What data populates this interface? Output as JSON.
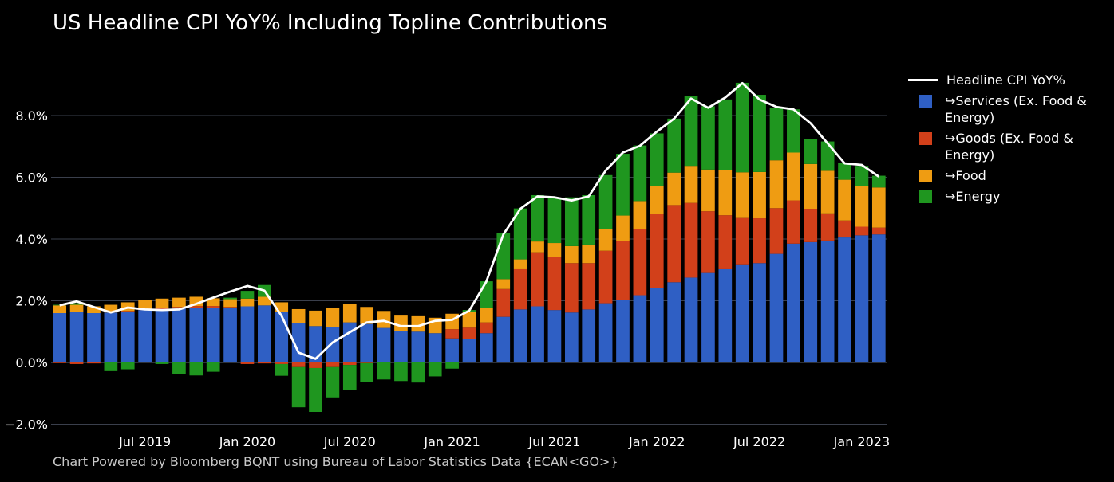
{
  "title": "US Headline CPI YoY% Including Topline Contributions",
  "footer": "Chart Powered by Bloomberg BQNT using Bureau of Labor Statistics Data    {ECAN<GO>}",
  "colors": {
    "services": "#2f5fc4",
    "goods": "#d2401a",
    "food": "#ef9c12",
    "energy": "#1f961f",
    "headline": "#ffffff",
    "grid": "#3a3f4c",
    "axis_text": "#ffffff"
  },
  "legend": [
    {
      "label": "Headline CPI YoY%",
      "kind": "line",
      "color_key": "headline"
    },
    {
      "label": "↪Services (Ex. Food & Energy)",
      "kind": "box",
      "color_key": "services"
    },
    {
      "label": "↪Goods (Ex. Food & Energy)",
      "kind": "box",
      "color_key": "goods"
    },
    {
      "label": "↪Food",
      "kind": "box",
      "color_key": "food"
    },
    {
      "label": "↪Energy",
      "kind": "box",
      "color_key": "energy"
    }
  ],
  "chart_data": {
    "type": "bar",
    "stacked": true,
    "title": "US Headline CPI YoY% Including Topline Contributions",
    "ylim": [
      -2.0,
      9.5
    ],
    "yticks": [
      -2.0,
      0.0,
      2.0,
      4.0,
      6.0,
      8.0
    ],
    "ytick_labels": [
      "−2.0%",
      "0.0%",
      "2.0%",
      "4.0%",
      "6.0%",
      "8.0%"
    ],
    "xtick_labels": [
      {
        "label": "Jul 2019",
        "month": "2019-07"
      },
      {
        "label": "Jan 2020",
        "month": "2020-01"
      },
      {
        "label": "Jul 2020",
        "month": "2020-07"
      },
      {
        "label": "Jan 2021",
        "month": "2021-01"
      },
      {
        "label": "Jul 2021",
        "month": "2021-07"
      },
      {
        "label": "Jan 2022",
        "month": "2022-01"
      },
      {
        "label": "Jul 2022",
        "month": "2022-07"
      },
      {
        "label": "Jan 2023",
        "month": "2023-01"
      }
    ],
    "grid": true,
    "legend_position": "right",
    "months": [
      "2019-02",
      "2019-03",
      "2019-04",
      "2019-05",
      "2019-06",
      "2019-07",
      "2019-08",
      "2019-09",
      "2019-10",
      "2019-11",
      "2019-12",
      "2020-01",
      "2020-02",
      "2020-03",
      "2020-04",
      "2020-05",
      "2020-06",
      "2020-07",
      "2020-08",
      "2020-09",
      "2020-10",
      "2020-11",
      "2020-12",
      "2021-01",
      "2021-02",
      "2021-03",
      "2021-04",
      "2021-05",
      "2021-06",
      "2021-07",
      "2021-08",
      "2021-09",
      "2021-10",
      "2021-11",
      "2021-12",
      "2022-01",
      "2022-02",
      "2022-03",
      "2022-04",
      "2022-05",
      "2022-06",
      "2022-07",
      "2022-08",
      "2022-09",
      "2022-10",
      "2022-11",
      "2022-12",
      "2023-01",
      "2023-02"
    ],
    "series": [
      {
        "name": "↪Services (Ex. Food & Energy)",
        "color_key": "services",
        "values": [
          1.6,
          1.65,
          1.6,
          1.62,
          1.65,
          1.7,
          1.72,
          1.75,
          1.78,
          1.78,
          1.78,
          1.82,
          1.85,
          1.65,
          1.28,
          1.18,
          1.15,
          1.3,
          1.25,
          1.12,
          1.02,
          1.0,
          0.95,
          0.78,
          0.75,
          0.95,
          1.48,
          1.72,
          1.82,
          1.7,
          1.62,
          1.72,
          1.92,
          2.02,
          2.18,
          2.42,
          2.6,
          2.75,
          2.9,
          3.02,
          3.18,
          3.22,
          3.52,
          3.85,
          3.9,
          3.95,
          4.05,
          4.12,
          4.15
        ]
      },
      {
        "name": "↪Goods (Ex. Food & Energy)",
        "color_key": "goods",
        "values": [
          -0.02,
          -0.05,
          -0.03,
          0.0,
          0.02,
          0.02,
          0.05,
          0.05,
          0.05,
          0.05,
          0.02,
          -0.05,
          -0.03,
          -0.05,
          -0.15,
          -0.18,
          -0.15,
          -0.08,
          -0.02,
          0.0,
          0.0,
          0.0,
          0.0,
          0.3,
          0.38,
          0.35,
          0.9,
          1.3,
          1.75,
          1.72,
          1.6,
          1.5,
          1.7,
          1.92,
          2.15,
          2.4,
          2.5,
          2.42,
          2.0,
          1.75,
          1.5,
          1.45,
          1.48,
          1.4,
          1.08,
          0.88,
          0.55,
          0.28,
          0.22
        ]
      },
      {
        "name": "↪Food",
        "color_key": "food",
        "values": [
          0.25,
          0.22,
          0.22,
          0.25,
          0.28,
          0.3,
          0.3,
          0.3,
          0.3,
          0.25,
          0.25,
          0.25,
          0.28,
          0.3,
          0.45,
          0.5,
          0.62,
          0.6,
          0.55,
          0.55,
          0.5,
          0.5,
          0.5,
          0.5,
          0.52,
          0.48,
          0.32,
          0.32,
          0.35,
          0.45,
          0.55,
          0.6,
          0.7,
          0.82,
          0.9,
          0.9,
          1.05,
          1.2,
          1.35,
          1.45,
          1.48,
          1.5,
          1.55,
          1.55,
          1.45,
          1.38,
          1.32,
          1.32,
          1.3
        ]
      },
      {
        "name": "↪Energy",
        "color_key": "energy",
        "values": [
          0.02,
          0.05,
          0.0,
          -0.28,
          -0.22,
          0.0,
          -0.05,
          -0.38,
          -0.42,
          -0.3,
          0.05,
          0.25,
          0.38,
          -0.38,
          -1.3,
          -1.42,
          -0.98,
          -0.82,
          -0.62,
          -0.55,
          -0.6,
          -0.65,
          -0.45,
          -0.2,
          0.05,
          0.85,
          1.5,
          1.65,
          1.5,
          1.45,
          1.58,
          1.6,
          1.75,
          2.0,
          1.8,
          1.7,
          1.75,
          2.25,
          2.05,
          2.3,
          2.9,
          2.5,
          1.7,
          1.4,
          0.8,
          0.95,
          0.55,
          0.65,
          0.38
        ]
      },
      {
        "name": "Headline CPI YoY%",
        "color_key": "headline",
        "kind": "line",
        "values": [
          1.85,
          1.98,
          1.8,
          1.62,
          1.78,
          1.72,
          1.7,
          1.72,
          1.9,
          2.1,
          2.3,
          2.48,
          2.33,
          1.52,
          0.32,
          0.12,
          0.65,
          0.98,
          1.3,
          1.35,
          1.18,
          1.18,
          1.35,
          1.38,
          1.68,
          2.62,
          4.15,
          4.98,
          5.38,
          5.35,
          5.25,
          5.38,
          6.22,
          6.8,
          7.02,
          7.48,
          7.9,
          8.55,
          8.25,
          8.58,
          9.05,
          8.52,
          8.28,
          8.2,
          7.75,
          7.1,
          6.45,
          6.4,
          6.02
        ]
      }
    ]
  }
}
